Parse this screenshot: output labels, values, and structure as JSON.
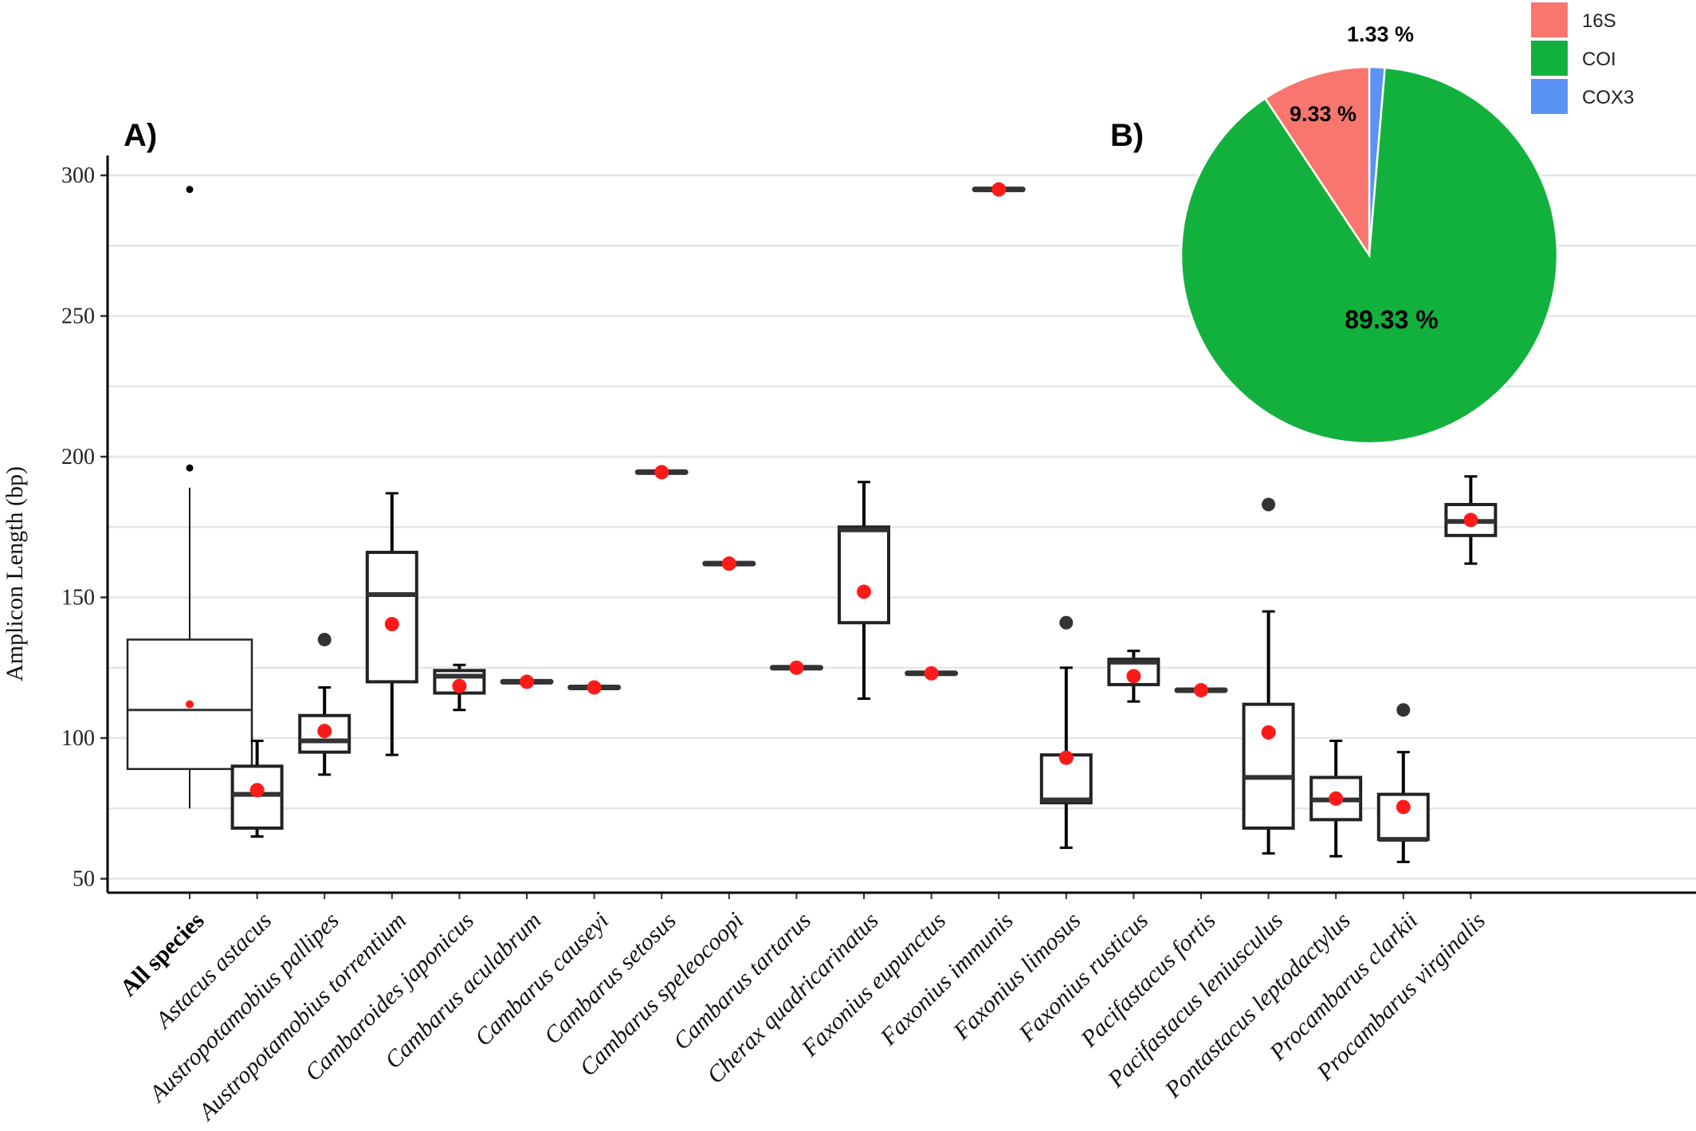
{
  "panel_a_label": "A)",
  "panel_b_label": "B)",
  "chart_data": [
    {
      "type": "box",
      "ylabel": "Amplicon Length (bp)",
      "xlabel": "",
      "ylim": [
        45,
        305
      ],
      "yticks": [
        50,
        100,
        150,
        200,
        250,
        300
      ],
      "grid": true,
      "legend": "none",
      "boxes": [
        {
          "label": "All species",
          "bold": true,
          "thin": true,
          "q1": 89,
          "median": 110,
          "q3": 135,
          "whisker_low": 75,
          "whisker_high": 189,
          "mean": 112,
          "outliers": [
            196,
            295
          ]
        },
        {
          "label": "Astacus astacus",
          "q1": 68,
          "median": 80,
          "q3": 90,
          "whisker_low": 65,
          "whisker_high": 99,
          "mean": 81.5,
          "outliers": []
        },
        {
          "label": "Austropotamobius pallipes",
          "q1": 95,
          "median": 99,
          "q3": 108,
          "whisker_low": 87,
          "whisker_high": 118,
          "mean": 102.5,
          "outliers": [
            135
          ]
        },
        {
          "label": "Austropotamobius torrentium",
          "q1": 120,
          "median": 151,
          "q3": 166,
          "whisker_low": 94,
          "whisker_high": 187,
          "mean": 140.5,
          "outliers": []
        },
        {
          "label": "Cambaroides japonicus",
          "q1": 116,
          "median": 122,
          "q3": 124,
          "whisker_low": 110,
          "whisker_high": 126,
          "mean": 118.5,
          "outliers": []
        },
        {
          "label": "Cambarus aculabrum",
          "q1": 120,
          "median": 120,
          "q3": 120,
          "whisker_low": 120,
          "whisker_high": 120,
          "mean": 120,
          "outliers": []
        },
        {
          "label": "Cambarus causeyi",
          "q1": 118,
          "median": 118,
          "q3": 118,
          "whisker_low": 118,
          "whisker_high": 118,
          "mean": 118,
          "outliers": []
        },
        {
          "label": "Cambarus setosus",
          "q1": 194.5,
          "median": 194.5,
          "q3": 194.5,
          "whisker_low": 194.5,
          "whisker_high": 194.5,
          "mean": 194.5,
          "outliers": []
        },
        {
          "label": "Cambarus speleocoopi",
          "q1": 162,
          "median": 162,
          "q3": 162,
          "whisker_low": 162,
          "whisker_high": 162,
          "mean": 162,
          "outliers": []
        },
        {
          "label": "Cambarus tartarus",
          "q1": 125,
          "median": 125,
          "q3": 125,
          "whisker_low": 125,
          "whisker_high": 125,
          "mean": 125,
          "outliers": []
        },
        {
          "label": "Cherax quadricarinatus",
          "q1": 141,
          "median": 174,
          "q3": 175,
          "whisker_low": 114,
          "whisker_high": 191,
          "mean": 152,
          "outliers": []
        },
        {
          "label": "Faxonius eupunctus",
          "q1": 123,
          "median": 123,
          "q3": 123,
          "whisker_low": 123,
          "whisker_high": 123,
          "mean": 123,
          "outliers": []
        },
        {
          "label": "Faxonius immunis",
          "q1": 295,
          "median": 295,
          "q3": 295,
          "whisker_low": 295,
          "whisker_high": 295,
          "mean": 295,
          "outliers": []
        },
        {
          "label": "Faxonius limosus",
          "q1": 77,
          "median": 78,
          "q3": 94,
          "whisker_low": 61,
          "whisker_high": 125,
          "mean": 93,
          "outliers": [
            141
          ]
        },
        {
          "label": "Faxonius rusticus",
          "q1": 119,
          "median": 127,
          "q3": 128,
          "whisker_low": 113,
          "whisker_high": 131,
          "mean": 122,
          "outliers": []
        },
        {
          "label": "Pacifastacus fortis",
          "q1": 117,
          "median": 117,
          "q3": 117,
          "whisker_low": 117,
          "whisker_high": 117,
          "mean": 117,
          "outliers": []
        },
        {
          "label": "Pacifastacus leniusculus",
          "q1": 68,
          "median": 86,
          "q3": 112,
          "whisker_low": 59,
          "whisker_high": 145,
          "mean": 102,
          "outliers": [
            183
          ]
        },
        {
          "label": "Pontastacus leptodactylus",
          "q1": 71,
          "median": 78,
          "q3": 86,
          "whisker_low": 58,
          "whisker_high": 99,
          "mean": 78.5,
          "outliers": []
        },
        {
          "label": "Procambarus clarkii",
          "q1": 64,
          "median": 64,
          "q3": 80,
          "whisker_low": 56,
          "whisker_high": 95,
          "mean": 75.5,
          "outliers": [
            110
          ]
        },
        {
          "label": "Procambarus virginalis",
          "q1": 172,
          "median": 177,
          "q3": 183,
          "whisker_low": 162,
          "whisker_high": 193,
          "mean": 177.5,
          "outliers": []
        }
      ]
    },
    {
      "type": "pie",
      "legend": "top-right",
      "slices": [
        {
          "name": "16S",
          "value": 9.33,
          "label": "9.33 %",
          "color": "#f8766d"
        },
        {
          "name": "COI",
          "value": 89.33,
          "label": "89.33 %",
          "color": "#12b13d"
        },
        {
          "name": "COX3",
          "value": 1.33,
          "label": "1.33 %",
          "color": "#5b93f5"
        }
      ]
    }
  ]
}
